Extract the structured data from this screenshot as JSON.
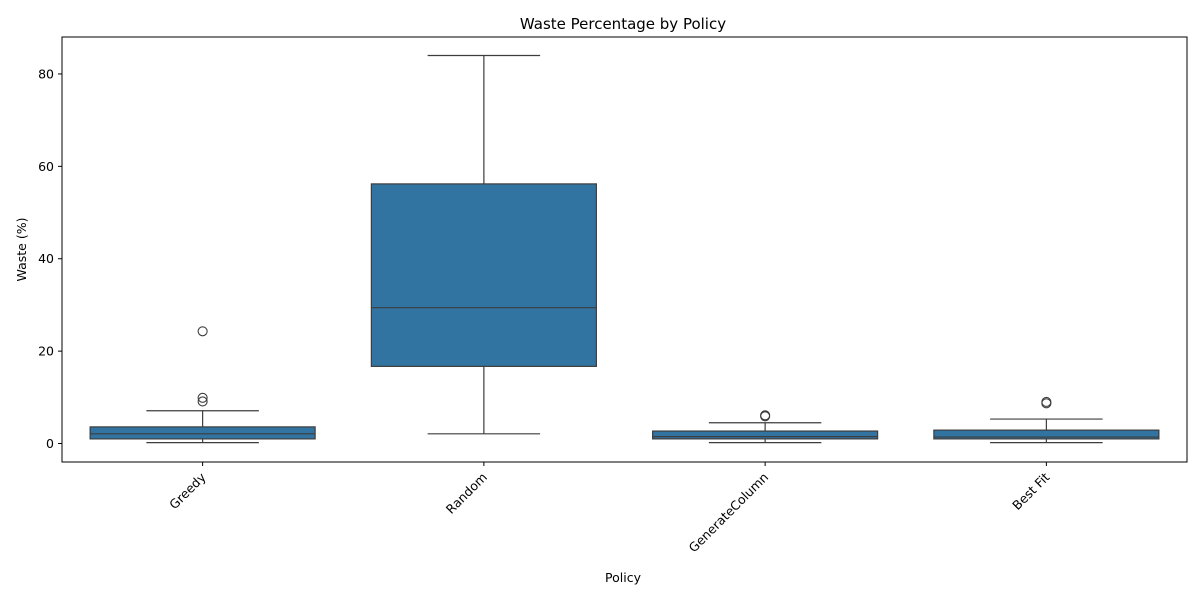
{
  "chart_data": {
    "type": "box",
    "title": "Waste Percentage by Policy",
    "xlabel": "Policy",
    "ylabel": "Waste (%)",
    "ylim": [
      -4,
      88
    ],
    "yticks": [
      0,
      20,
      40,
      60,
      80
    ],
    "ytick_labels": [
      "0",
      "20",
      "40",
      "60",
      "80"
    ],
    "grid": false,
    "x_tick_rotation_deg": 45,
    "box_color": "#3274a1",
    "line_color": "#3d3d3d",
    "categories": [
      "Greedy",
      "Random",
      "GenerateColumn",
      "Best Fit"
    ],
    "boxes": [
      {
        "category": "Greedy",
        "whisker_low": 0.2,
        "q1": 1.0,
        "median": 2.1,
        "q3": 3.6,
        "whisker_high": 7.1,
        "outliers": [
          9.1,
          9.9,
          24.3
        ]
      },
      {
        "category": "Random",
        "whisker_low": 2.1,
        "q1": 16.7,
        "median": 29.4,
        "q3": 56.2,
        "whisker_high": 84.0,
        "outliers": []
      },
      {
        "category": "GenerateColumn",
        "whisker_low": 0.2,
        "q1": 1.0,
        "median": 1.5,
        "q3": 2.7,
        "whisker_high": 4.5,
        "outliers": [
          5.9,
          6.1
        ]
      },
      {
        "category": "Best Fit",
        "whisker_low": 0.2,
        "q1": 1.0,
        "median": 1.4,
        "q3": 2.9,
        "whisker_high": 5.3,
        "outliers": [
          8.7,
          9.0
        ]
      }
    ]
  }
}
